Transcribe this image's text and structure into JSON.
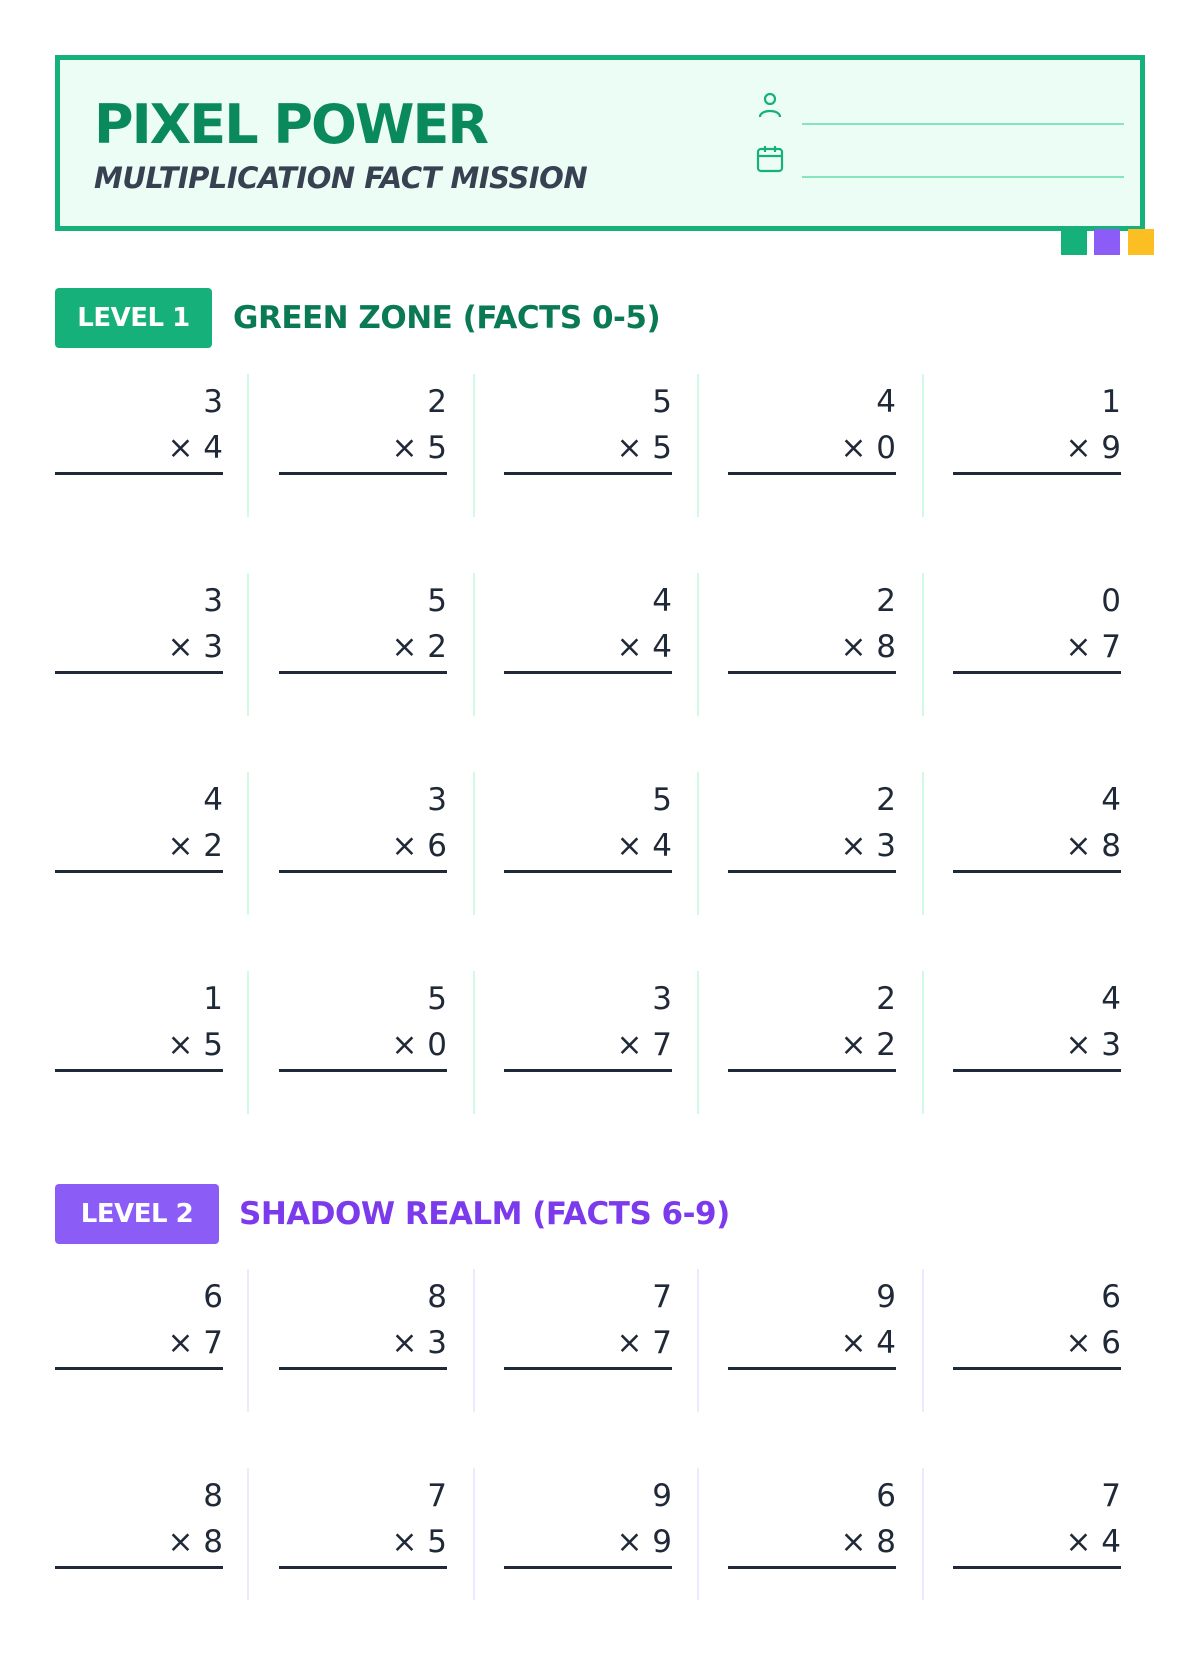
{
  "header": {
    "title": "PIXEL POWER",
    "subtitle": "MULTIPLICATION FACT MISSION",
    "name_icon": "person-icon",
    "date_icon": "calendar-icon",
    "swatch_colors": [
      "#16b07a",
      "#8b5cf6",
      "#fbbf24"
    ]
  },
  "levels": [
    {
      "badge": "LEVEL 1",
      "title": "GREEN ZONE (FACTS 0-5)",
      "color": "#16b07a",
      "title_color": "#0a7a55",
      "divider_color": "#d1fae5",
      "rows": [
        [
          {
            "top": "3",
            "bottom": "× 4"
          },
          {
            "top": "2",
            "bottom": "× 5"
          },
          {
            "top": "5",
            "bottom": "× 5"
          },
          {
            "top": "4",
            "bottom": "× 0"
          },
          {
            "top": "1",
            "bottom": "× 9"
          }
        ],
        [
          {
            "top": "3",
            "bottom": "× 3"
          },
          {
            "top": "5",
            "bottom": "× 2"
          },
          {
            "top": "4",
            "bottom": "× 4"
          },
          {
            "top": "2",
            "bottom": "× 8"
          },
          {
            "top": "0",
            "bottom": "× 7"
          }
        ],
        [
          {
            "top": "4",
            "bottom": "× 2"
          },
          {
            "top": "3",
            "bottom": "× 6"
          },
          {
            "top": "5",
            "bottom": "× 4"
          },
          {
            "top": "2",
            "bottom": "× 3"
          },
          {
            "top": "4",
            "bottom": "× 8"
          }
        ],
        [
          {
            "top": "1",
            "bottom": "× 5"
          },
          {
            "top": "5",
            "bottom": "× 0"
          },
          {
            "top": "3",
            "bottom": "× 7"
          },
          {
            "top": "2",
            "bottom": "× 2"
          },
          {
            "top": "4",
            "bottom": "× 3"
          }
        ]
      ]
    },
    {
      "badge": "LEVEL 2",
      "title": "SHADOW REALM (FACTS 6-9)",
      "color": "#8b5cf6",
      "title_color": "#7c3aed",
      "divider_color": "#ede9fe",
      "rows": [
        [
          {
            "top": "6",
            "bottom": "× 7"
          },
          {
            "top": "8",
            "bottom": "× 3"
          },
          {
            "top": "7",
            "bottom": "× 7"
          },
          {
            "top": "9",
            "bottom": "× 4"
          },
          {
            "top": "6",
            "bottom": "× 6"
          }
        ],
        [
          {
            "top": "8",
            "bottom": "× 8"
          },
          {
            "top": "7",
            "bottom": "× 5"
          },
          {
            "top": "9",
            "bottom": "× 9"
          },
          {
            "top": "6",
            "bottom": "× 8"
          },
          {
            "top": "7",
            "bottom": "× 4"
          }
        ]
      ]
    }
  ]
}
